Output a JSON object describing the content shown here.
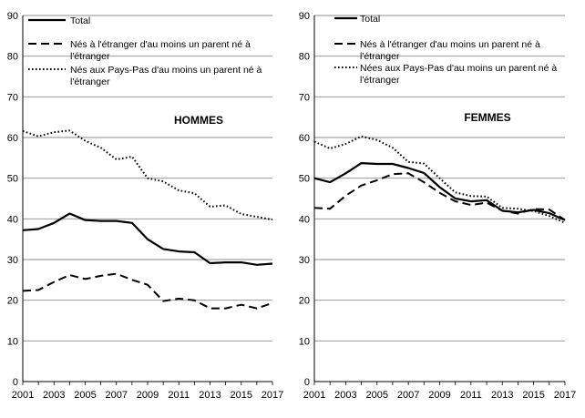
{
  "chart_data": [
    {
      "type": "line",
      "title": "HOMMES",
      "xlabel": "",
      "ylabel": "",
      "ylim": [
        0,
        90
      ],
      "yticks": [
        0,
        10,
        20,
        30,
        40,
        50,
        60,
        70,
        80,
        90
      ],
      "x": [
        2001,
        2002,
        2003,
        2004,
        2005,
        2006,
        2007,
        2008,
        2009,
        2010,
        2011,
        2012,
        2013,
        2014,
        2015,
        2016,
        2017
      ],
      "xticks": [
        "2001",
        "2003",
        "2005",
        "2007",
        "2009",
        "2011",
        "2013",
        "2015",
        "2017"
      ],
      "grid": "horizontal",
      "legend_position": "top-left",
      "series": [
        {
          "name": "Total",
          "style": "solid",
          "values": [
            37.2,
            37.5,
            39.0,
            41.3,
            39.7,
            39.5,
            39.5,
            39.0,
            35.0,
            32.6,
            32.0,
            31.8,
            29.1,
            29.3,
            29.3,
            28.7,
            29.0
          ]
        },
        {
          "name": "Nés à l'étranger d'au moins un parent né à l'étranger",
          "style": "dashed",
          "values": [
            22.3,
            22.5,
            24.5,
            26.2,
            25.2,
            26.0,
            26.5,
            25.0,
            23.8,
            19.8,
            20.4,
            20.0,
            18.0,
            18.0,
            18.9,
            18.0,
            19.3
          ]
        },
        {
          "name": "Nés aux Pays-Pas d'au moins un parent né à l'étranger",
          "style": "dotted",
          "values": [
            61.6,
            60.3,
            61.3,
            61.7,
            59.2,
            57.5,
            54.6,
            55.3,
            50.0,
            49.2,
            47.0,
            46.3,
            43.0,
            43.3,
            41.2,
            40.5,
            39.8
          ]
        }
      ]
    },
    {
      "type": "line",
      "title": "FEMMES",
      "xlabel": "",
      "ylabel": "",
      "ylim": [
        0,
        90
      ],
      "yticks": [
        0,
        10,
        20,
        30,
        40,
        50,
        60,
        70,
        80,
        90
      ],
      "x": [
        2001,
        2002,
        2003,
        2004,
        2005,
        2006,
        2007,
        2008,
        2009,
        2010,
        2011,
        2012,
        2013,
        2014,
        2015,
        2016,
        2017
      ],
      "xticks": [
        "2001",
        "2003",
        "2005",
        "2007",
        "2009",
        "2011",
        "2013",
        "2015",
        "2017"
      ],
      "grid": "horizontal",
      "legend_position": "top-left",
      "series": [
        {
          "name": "Total",
          "style": "solid",
          "values": [
            50.0,
            49.0,
            51.2,
            53.7,
            53.5,
            53.5,
            52.5,
            51.3,
            47.8,
            45.0,
            44.3,
            44.6,
            42.0,
            41.6,
            42.2,
            41.4,
            39.7
          ]
        },
        {
          "name": "Nés à l'étranger d'au moins un parent né à l'étranger",
          "style": "dashed",
          "values": [
            42.7,
            42.5,
            45.7,
            48.2,
            49.5,
            51.0,
            51.2,
            49.0,
            46.4,
            44.3,
            43.4,
            44.0,
            42.0,
            41.3,
            42.4,
            42.3,
            39.7
          ]
        },
        {
          "name": "Nées aux Pays-Pas d'au moins un parent né à l'étranger",
          "style": "dotted",
          "values": [
            59.0,
            57.3,
            58.4,
            60.3,
            59.4,
            57.5,
            54.0,
            53.6,
            50.0,
            46.5,
            45.6,
            45.5,
            42.7,
            42.5,
            41.9,
            40.7,
            39.0
          ]
        }
      ]
    }
  ]
}
